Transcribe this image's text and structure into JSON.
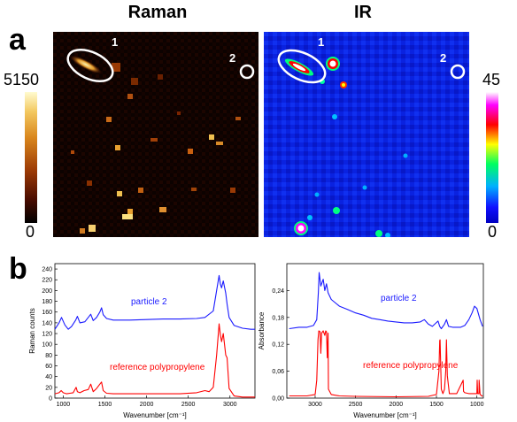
{
  "panel_a": {
    "letter": "a",
    "raman_title": "Raman",
    "ir_title": "IR",
    "raman_scale": {
      "max": "5150",
      "min": "0"
    },
    "ir_scale": {
      "max": "45",
      "min": "0"
    },
    "raman_markers": [
      "1",
      "2"
    ],
    "ir_markers": [
      "1",
      "2"
    ],
    "raman_colormap": [
      "#000000",
      "#3a0700",
      "#8a2a00",
      "#d06a10",
      "#f0b040",
      "#fff4b0"
    ],
    "ir_colormap": [
      "#1010ff",
      "#00b0ff",
      "#00ff80",
      "#ffff00",
      "#ff0000",
      "#ff00ff",
      "#ffffff"
    ]
  },
  "panel_b": {
    "letter": "b"
  },
  "chart_data": [
    {
      "type": "line",
      "xlabel": "Wavenumber [cm⁻¹]",
      "ylabel": "Raman counts",
      "xlim": [
        900,
        3300
      ],
      "ylim": [
        0,
        250
      ],
      "xticks": [
        "1000",
        "1500",
        "2000",
        "2500",
        "3000"
      ],
      "yticks": [
        "0",
        "20",
        "40",
        "60",
        "80",
        "100",
        "120",
        "140",
        "160",
        "180",
        "200",
        "220",
        "240"
      ],
      "annotations": [
        "particle 2",
        "reference polypropylene"
      ],
      "series": [
        {
          "name": "particle 2",
          "color": "#1a1aff",
          "x": [
            900,
            950,
            980,
            1020,
            1060,
            1100,
            1150,
            1170,
            1200,
            1260,
            1300,
            1330,
            1360,
            1400,
            1440,
            1460,
            1480,
            1520,
            1600,
            1800,
            2000,
            2200,
            2400,
            2600,
            2700,
            2800,
            2840,
            2870,
            2885,
            2900,
            2920,
            2950,
            2965,
            2990,
            3050,
            3150,
            3250,
            3300
          ],
          "y": [
            128,
            140,
            150,
            136,
            128,
            133,
            145,
            152,
            140,
            142,
            150,
            156,
            144,
            150,
            160,
            168,
            155,
            148,
            145,
            145,
            146,
            147,
            147,
            148,
            150,
            162,
            200,
            228,
            212,
            205,
            218,
            195,
            175,
            150,
            135,
            130,
            128,
            128
          ]
        },
        {
          "name": "reference polypropylene",
          "color": "#ff0000",
          "x": [
            900,
            950,
            975,
            1000,
            1040,
            1080,
            1120,
            1155,
            1170,
            1200,
            1250,
            1300,
            1330,
            1360,
            1400,
            1440,
            1460,
            1480,
            1520,
            1600,
            1800,
            2000,
            2200,
            2400,
            2600,
            2700,
            2750,
            2800,
            2840,
            2870,
            2885,
            2900,
            2920,
            2950,
            2965,
            2990,
            3050,
            3150,
            3300
          ],
          "y": [
            8,
            10,
            14,
            10,
            8,
            9,
            10,
            20,
            12,
            10,
            14,
            16,
            26,
            12,
            18,
            26,
            30,
            14,
            9,
            8,
            8,
            8,
            8,
            8,
            10,
            14,
            12,
            20,
            80,
            138,
            118,
            105,
            120,
            80,
            75,
            18,
            4,
            2,
            2
          ]
        }
      ]
    },
    {
      "type": "line",
      "xlabel": "Wavenumber [cm⁻¹]",
      "ylabel": "Absorbance",
      "xlim": [
        3350,
        920
      ],
      "ylim": [
        0,
        0.3
      ],
      "xticks": [
        "3000",
        "2500",
        "2000",
        "1500",
        "1000"
      ],
      "yticks": [
        "0,00",
        "0,06",
        "0,12",
        "0,18",
        "0,24"
      ],
      "annotations": [
        "particle 2",
        "reference polypropylene"
      ],
      "series": [
        {
          "name": "particle 2",
          "color": "#1a1aff",
          "x": [
            3320,
            3200,
            3100,
            3020,
            2980,
            2960,
            2950,
            2930,
            2900,
            2880,
            2860,
            2840,
            2800,
            2700,
            2600,
            2500,
            2400,
            2300,
            2200,
            2100,
            2000,
            1900,
            1800,
            1700,
            1650,
            1600,
            1550,
            1480,
            1460,
            1440,
            1400,
            1376,
            1350,
            1300,
            1200,
            1150,
            1100,
            1060,
            1030,
            1000,
            960,
            930
          ],
          "y": [
            0.155,
            0.158,
            0.158,
            0.162,
            0.175,
            0.235,
            0.28,
            0.25,
            0.265,
            0.24,
            0.255,
            0.235,
            0.22,
            0.205,
            0.198,
            0.19,
            0.185,
            0.178,
            0.175,
            0.172,
            0.17,
            0.168,
            0.168,
            0.17,
            0.175,
            0.165,
            0.16,
            0.172,
            0.16,
            0.155,
            0.165,
            0.175,
            0.16,
            0.158,
            0.158,
            0.162,
            0.175,
            0.19,
            0.205,
            0.2,
            0.175,
            0.16
          ]
        },
        {
          "name": "reference polypropylene",
          "color": "#ff0000",
          "x": [
            3320,
            3100,
            3000,
            2980,
            2965,
            2955,
            2940,
            2930,
            2920,
            2900,
            2880,
            2870,
            2860,
            2850,
            2840,
            2835,
            2800,
            2700,
            2500,
            2000,
            1600,
            1500,
            1470,
            1460,
            1455,
            1440,
            1420,
            1400,
            1385,
            1376,
            1365,
            1340,
            1250,
            1170,
            1165,
            1150,
            1100,
            1000,
            997,
            990,
            975,
            973,
            960,
            930
          ],
          "y": [
            0.005,
            0.005,
            0.008,
            0.04,
            0.13,
            0.15,
            0.148,
            0.1,
            0.145,
            0.15,
            0.14,
            0.15,
            0.148,
            0.09,
            0.145,
            0.02,
            0.008,
            0.005,
            0.004,
            0.003,
            0.004,
            0.008,
            0.06,
            0.128,
            0.13,
            0.02,
            0.01,
            0.02,
            0.06,
            0.13,
            0.05,
            0.01,
            0.01,
            0.04,
            0.015,
            0.012,
            0.01,
            0.01,
            0.04,
            0.01,
            0.01,
            0.04,
            0.008,
            0.004
          ]
        }
      ]
    }
  ]
}
